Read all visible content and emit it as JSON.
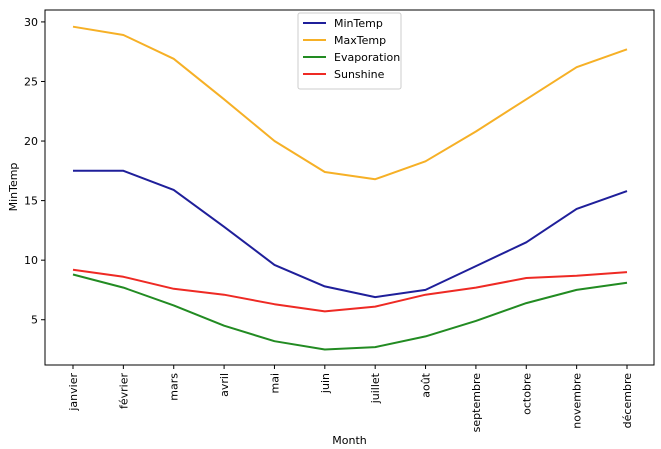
{
  "chart_data": {
    "type": "line",
    "categories": [
      "janvier",
      "février",
      "mars",
      "avril",
      "mai",
      "juin",
      "juillet",
      "août",
      "septembre",
      "octobre",
      "novembre",
      "décembre"
    ],
    "series": [
      {
        "name": "MinTemp",
        "color": "#1f1f9a",
        "values": [
          17.5,
          17.5,
          15.9,
          12.8,
          9.6,
          7.8,
          6.9,
          7.5,
          9.5,
          11.5,
          14.3,
          15.8
        ]
      },
      {
        "name": "MaxTemp",
        "color": "#f6b026",
        "values": [
          29.6,
          28.9,
          26.9,
          23.5,
          20.0,
          17.4,
          16.8,
          18.3,
          20.8,
          23.5,
          26.2,
          27.7
        ]
      },
      {
        "name": "Evaporation",
        "color": "#228b22",
        "values": [
          8.8,
          7.7,
          6.2,
          4.5,
          3.2,
          2.5,
          2.7,
          3.6,
          4.9,
          6.4,
          7.5,
          8.1
        ]
      },
      {
        "name": "Sunshine",
        "color": "#ee2a24",
        "values": [
          9.2,
          8.6,
          7.6,
          7.1,
          6.3,
          5.7,
          6.1,
          7.1,
          7.7,
          8.5,
          8.7,
          9.0
        ]
      }
    ],
    "xlabel": "Month",
    "ylabel": "MinTemp",
    "ylim": [
      1.2,
      31.0
    ],
    "yticks": [
      5,
      10,
      15,
      20,
      25,
      30
    ],
    "grid": false,
    "legend_position": "upper center"
  }
}
